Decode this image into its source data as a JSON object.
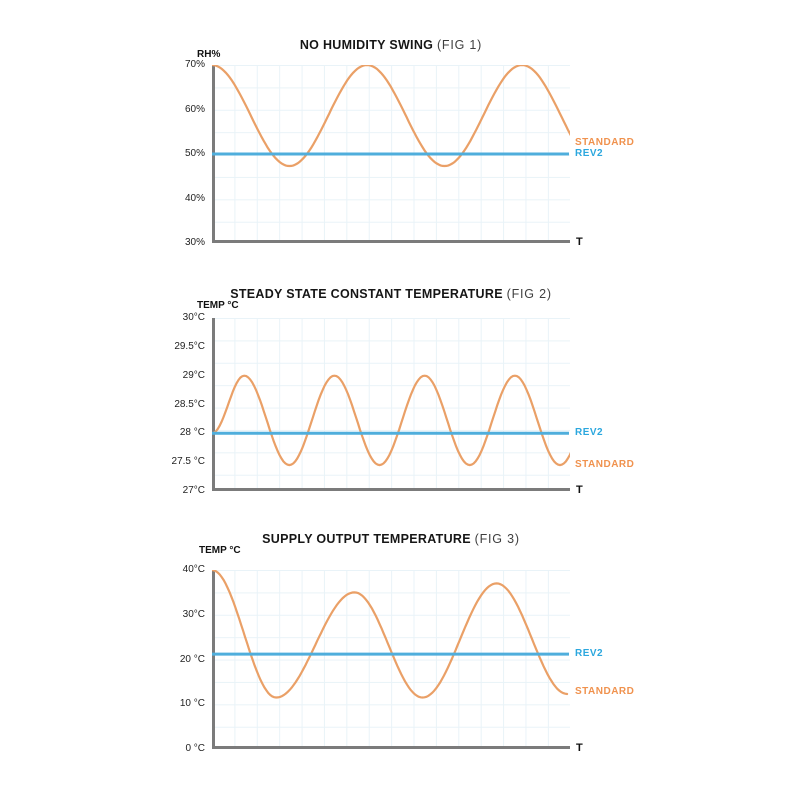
{
  "page": {
    "background": "#FFFFFF"
  },
  "palette": {
    "standard": "#EAA067",
    "standard_text": "#F0924E",
    "rev2": "#4FAEDC",
    "rev2_text": "#2BA7DE",
    "axis": "#7B7B7B",
    "grid": "#E9F3F8",
    "tick_text": "#232323",
    "title": "#161616",
    "fig_text": "#3F3F3F"
  },
  "chart_data": [
    {
      "type": "line",
      "title": "NO HUMIDITY SWING",
      "fig": "(FIG 1)",
      "y_axis_label": "RH%",
      "x_axis_label": "T",
      "ylim": [
        30,
        70
      ],
      "grid": true,
      "legend_position": "right",
      "y_ticks": [
        {
          "label": "70%",
          "value": 70
        },
        {
          "label": "60%",
          "value": 60
        },
        {
          "label": "50%",
          "value": 50
        },
        {
          "label": "40%",
          "value": 40
        },
        {
          "label": "30%",
          "value": 30
        }
      ],
      "series": [
        {
          "name": "STANDARD",
          "kind": "wave",
          "color_key": "standard",
          "keypoints": [
            [
              0,
              70
            ],
            [
              0.2165,
              47.3
            ],
            [
              0.433,
              70
            ],
            [
              0.6495,
              47.3
            ],
            [
              0.866,
              70
            ],
            [
              1.083,
              47.3
            ]
          ]
        },
        {
          "name": "REV2",
          "kind": "hline",
          "color_key": "rev2",
          "value": 50
        }
      ],
      "legend": [
        {
          "label": "STANDARD",
          "at_value": 52.4,
          "color_key": "standard_text"
        },
        {
          "label": "REV2",
          "at_value": 50,
          "color_key": "rev2_text"
        }
      ]
    },
    {
      "type": "line",
      "title": "STEADY STATE CONSTANT TEMPERATURE",
      "fig": "(FIG 2)",
      "y_axis_label": "TEMP °C",
      "x_axis_label": "T",
      "ylim": [
        27,
        30
      ],
      "grid": true,
      "legend_position": "right",
      "y_ticks": [
        {
          "label": "30°C",
          "value": 30
        },
        {
          "label": "29.5°C",
          "value": 29.5
        },
        {
          "label": "29°C",
          "value": 29
        },
        {
          "label": "28.5°C",
          "value": 28.5
        },
        {
          "label": "28 °C",
          "value": 28
        },
        {
          "label": "27.5 °C",
          "value": 27.5
        },
        {
          "label": "27°C",
          "value": 27
        }
      ],
      "series": [
        {
          "name": "STANDARD",
          "kind": "wave",
          "color_key": "standard",
          "keypoints": [
            [
              0,
              28
            ],
            [
              0.09,
              29
            ],
            [
              0.216,
              27.45
            ],
            [
              0.342,
              29
            ],
            [
              0.468,
              27.45
            ],
            [
              0.594,
              29
            ],
            [
              0.72,
              27.45
            ],
            [
              0.846,
              29
            ],
            [
              0.972,
              27.45
            ],
            [
              1.098,
              29
            ]
          ]
        },
        {
          "name": "REV2",
          "kind": "hline",
          "color_key": "rev2",
          "value": 28
        }
      ],
      "legend": [
        {
          "label": "REV2",
          "at_value": 28,
          "color_key": "rev2_text"
        },
        {
          "label": "STANDARD",
          "at_value": 27.45,
          "color_key": "standard_text"
        }
      ]
    },
    {
      "type": "line",
      "title": "SUPPLY OUTPUT TEMPERATURE",
      "fig": "(FIG 3)",
      "y_axis_label": "TEMP °C",
      "x_axis_label": "T",
      "ylim": [
        0,
        40
      ],
      "grid": true,
      "legend_position": "right",
      "y_ticks": [
        {
          "label": "40°C",
          "value": 40
        },
        {
          "label": "30°C",
          "value": 30
        },
        {
          "label": "20 °C",
          "value": 20
        },
        {
          "label": "10 °C",
          "value": 10
        },
        {
          "label": "0 °C",
          "value": 0
        }
      ],
      "series": [
        {
          "name": "STANDARD",
          "kind": "wave",
          "color_key": "standard",
          "keypoints": [
            [
              0,
              40
            ],
            [
              0.179,
              11.5
            ],
            [
              0.398,
              35
            ],
            [
              0.588,
              11.5
            ],
            [
              0.795,
              37
            ],
            [
              0.992,
              12.3
            ]
          ]
        },
        {
          "name": "REV2",
          "kind": "hline",
          "color_key": "rev2",
          "value": 21.2
        }
      ],
      "legend": [
        {
          "label": "REV2",
          "at_value": 21.2,
          "color_key": "rev2_text"
        },
        {
          "label": "STANDARD",
          "at_value": 12.7,
          "color_key": "standard_text"
        }
      ]
    }
  ]
}
